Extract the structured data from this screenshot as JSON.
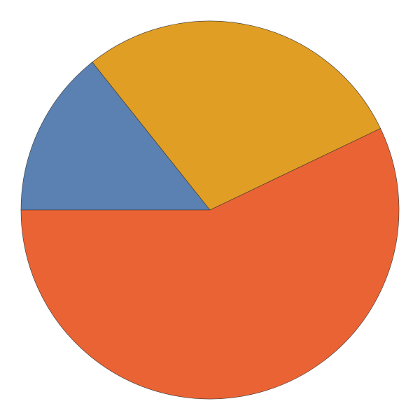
{
  "chart_data": {
    "type": "pie",
    "values": [
      14.3,
      28.6,
      57.1
    ],
    "colors": [
      "#5b80b2",
      "#e09e24",
      "#ea6334"
    ]
  }
}
